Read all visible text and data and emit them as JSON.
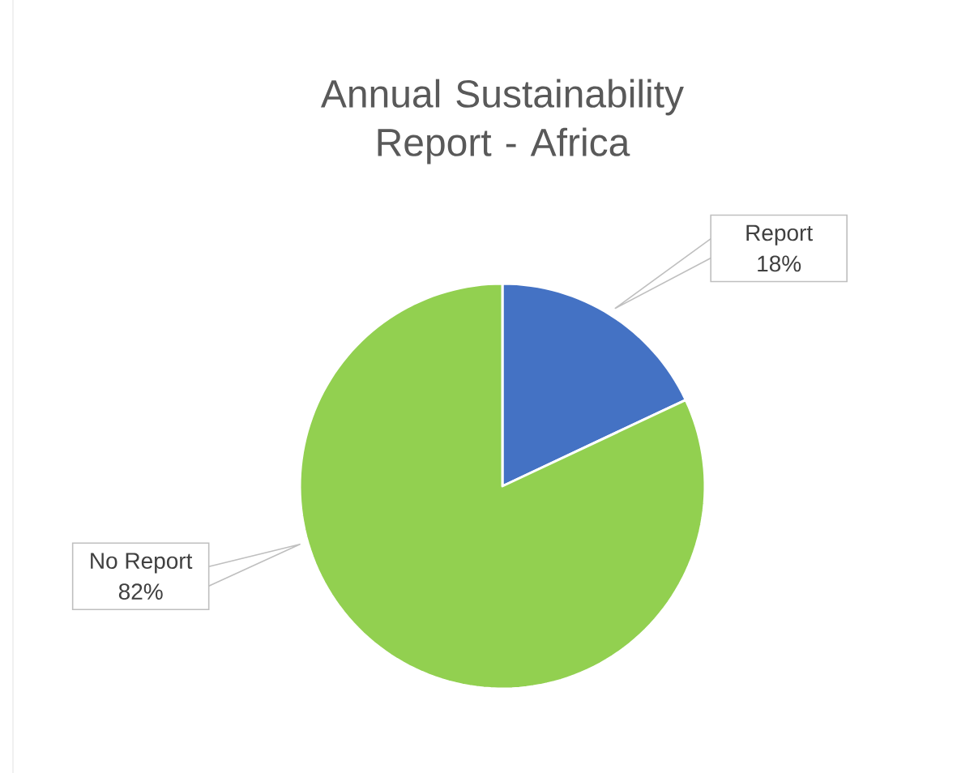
{
  "chart_data": {
    "type": "pie",
    "title": "Annual Sustainability Report - Africa",
    "categories": [
      "Report",
      "No Report"
    ],
    "values": [
      18,
      82
    ],
    "colors": [
      "#4472c4",
      "#92d050"
    ],
    "value_labels": [
      "18%",
      "82%"
    ]
  }
}
